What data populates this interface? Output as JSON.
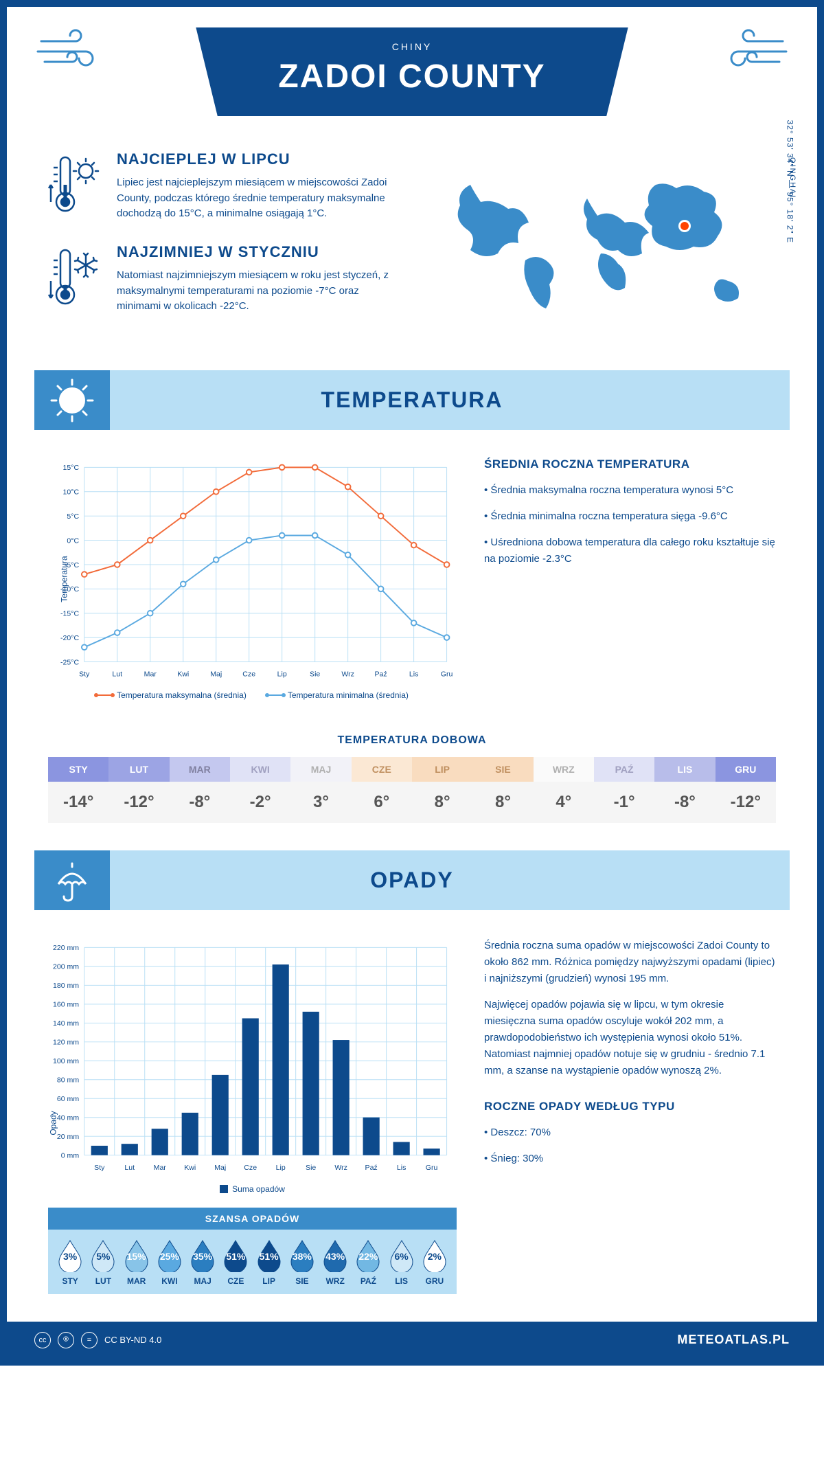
{
  "header": {
    "title": "ZADOI COUNTY",
    "country": "CHINY",
    "region": "QINGHAI",
    "coords": "32° 53' 34\" N — 95° 18' 2\" E"
  },
  "intro": {
    "hot": {
      "title": "NAJCIEPLEJ W LIPCU",
      "text": "Lipiec jest najcieplejszym miesiącem w miejscowości Zadoi County, podczas którego średnie temperatury maksymalne dochodzą do 15°C, a minimalne osiągają 1°C."
    },
    "cold": {
      "title": "NAJZIMNIEJ W STYCZNIU",
      "text": "Natomiast najzimniejszym miesiącem w roku jest styczeń, z maksymalnymi temperaturami na poziomie -7°C oraz minimami w okolicach -22°C."
    }
  },
  "colors": {
    "primary": "#0d4a8c",
    "light_blue": "#b8dff5",
    "mid_blue": "#3a8cc9",
    "orange": "#f26b3a",
    "line_blue": "#5aa9e0",
    "grid": "#b8dff5"
  },
  "temp_section": {
    "title": "TEMPERATURA",
    "chart": {
      "type": "line",
      "ylabel": "Temperatura",
      "ylim": [
        -25,
        15
      ],
      "ytick_step": 5,
      "ytick_suffix": "°C",
      "months": [
        "Sty",
        "Lut",
        "Mar",
        "Kwi",
        "Maj",
        "Cze",
        "Lip",
        "Sie",
        "Wrz",
        "Paź",
        "Lis",
        "Gru"
      ],
      "series": [
        {
          "name": "Temperatura maksymalna (średnia)",
          "color": "#f26b3a",
          "values": [
            -7,
            -5,
            0,
            5,
            10,
            14,
            15,
            15,
            11,
            5,
            -1,
            -5
          ]
        },
        {
          "name": "Temperatura minimalna (średnia)",
          "color": "#5aa9e0",
          "values": [
            -22,
            -19,
            -15,
            -9,
            -4,
            0,
            1,
            1,
            -3,
            -10,
            -17,
            -20
          ]
        }
      ],
      "line_width": 2,
      "marker": "circle",
      "marker_size": 4,
      "grid_color": "#b8dff5",
      "background": "#ffffff"
    },
    "info": {
      "title": "ŚREDNIA ROCZNA TEMPERATURA",
      "bullets": [
        "• Średnia maksymalna roczna temperatura wynosi 5°C",
        "• Średnia minimalna roczna temperatura sięga -9.6°C",
        "• Uśredniona dobowa temperatura dla całego roku kształtuje się na poziomie -2.3°C"
      ]
    },
    "daily": {
      "title": "TEMPERATURA DOBOWA",
      "months": [
        "STY",
        "LUT",
        "MAR",
        "KWI",
        "MAJ",
        "CZE",
        "LIP",
        "SIE",
        "WRZ",
        "PAŹ",
        "LIS",
        "GRU"
      ],
      "values": [
        "-14°",
        "-12°",
        "-8°",
        "-2°",
        "3°",
        "6°",
        "8°",
        "8°",
        "4°",
        "-1°",
        "-8°",
        "-12°"
      ],
      "header_colors": [
        "#8b95e0",
        "#9ca4e4",
        "#c4c8ef",
        "#e0e2f6",
        "#f2f2f8",
        "#fbe8d4",
        "#f9dcbf",
        "#f9dcbf",
        "#fafafa",
        "#e0e2f6",
        "#b8bdea",
        "#8b95e0"
      ],
      "header_text_colors": [
        "#fff",
        "#fff",
        "#8080a0",
        "#a0a0c0",
        "#b0b0b0",
        "#c09060",
        "#c09060",
        "#c09060",
        "#b0b0b0",
        "#a0a0c0",
        "#fff",
        "#fff"
      ]
    }
  },
  "precip_section": {
    "title": "OPADY",
    "chart": {
      "type": "bar",
      "ylabel": "Opady",
      "ylim": [
        0,
        220
      ],
      "ytick_step": 20,
      "ytick_suffix": " mm",
      "months": [
        "Sty",
        "Lut",
        "Mar",
        "Kwi",
        "Maj",
        "Cze",
        "Lip",
        "Sie",
        "Wrz",
        "Paź",
        "Lis",
        "Gru"
      ],
      "values": [
        10,
        12,
        28,
        45,
        85,
        145,
        202,
        152,
        122,
        40,
        14,
        7
      ],
      "bar_color": "#0d4a8c",
      "legend": "Suma opadów",
      "grid_color": "#b8dff5",
      "background": "#ffffff"
    },
    "info": {
      "p1": "Średnia roczna suma opadów w miejscowości Zadoi County to około 862 mm. Różnica pomiędzy najwyższymi opadami (lipiec) i najniższymi (grudzień) wynosi 195 mm.",
      "p2": "Najwięcej opadów pojawia się w lipcu, w tym okresie miesięczna suma opadów oscyluje wokół 202 mm, a prawdopodobieństwo ich występienia wynosi około 51%. Natomiast najmniej opadów notuje się w grudniu - średnio 7.1 mm, a szanse na wystąpienie opadów wynoszą 2%."
    },
    "chance": {
      "title": "SZANSA OPADÓW",
      "months": [
        "STY",
        "LUT",
        "MAR",
        "KWI",
        "MAJ",
        "CZE",
        "LIP",
        "SIE",
        "WRZ",
        "PAŹ",
        "LIS",
        "GRU"
      ],
      "pct": [
        "3%",
        "5%",
        "15%",
        "25%",
        "35%",
        "51%",
        "51%",
        "38%",
        "43%",
        "22%",
        "6%",
        "2%"
      ],
      "drop_colors": [
        "#ffffff",
        "#cfe8f7",
        "#88c4e8",
        "#5aa9e0",
        "#2b7ec0",
        "#0d4a8c",
        "#0d4a8c",
        "#2b7ec0",
        "#1f6aae",
        "#72b8e3",
        "#cfe8f7",
        "#ffffff"
      ],
      "text_colors": [
        "#0d4a8c",
        "#0d4a8c",
        "#fff",
        "#fff",
        "#fff",
        "#fff",
        "#fff",
        "#fff",
        "#fff",
        "#fff",
        "#0d4a8c",
        "#0d4a8c"
      ]
    },
    "by_type": {
      "title": "ROCZNE OPADY WEDŁUG TYPU",
      "items": [
        "• Deszcz: 70%",
        "• Śnieg: 30%"
      ]
    }
  },
  "footer": {
    "license": "CC BY-ND 4.0",
    "site": "METEOATLAS.PL"
  }
}
